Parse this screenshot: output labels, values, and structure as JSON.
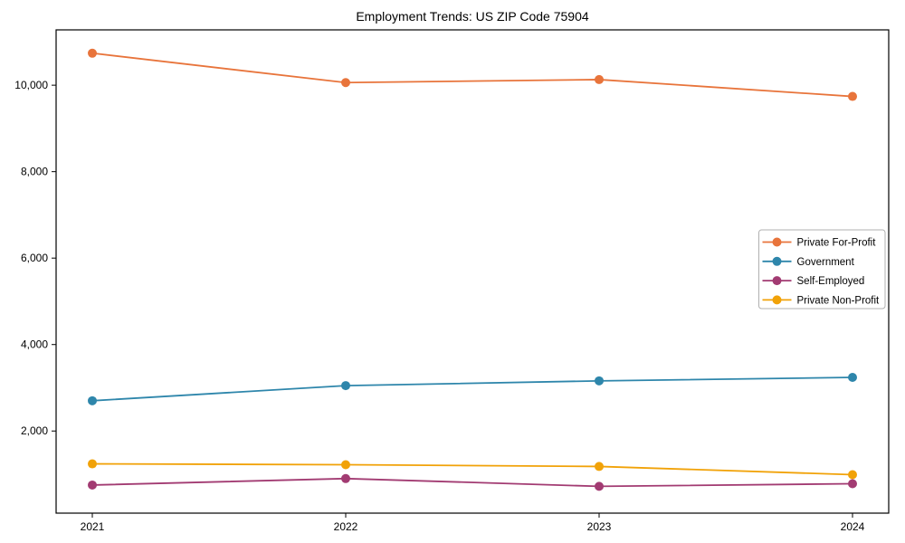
{
  "chart_data": {
    "type": "line",
    "title": "Employment Trends: US ZIP Code 75904",
    "xlabel": "",
    "ylabel": "",
    "x_tick_labels": [
      "2021",
      "2022",
      "2023",
      "2024"
    ],
    "y_ticks": [
      2000,
      4000,
      6000,
      8000,
      10000
    ],
    "y_tick_labels": [
      "2,000",
      "4,000",
      "6,000",
      "8,000",
      "10,000"
    ],
    "ylim": [
      100,
      11280
    ],
    "grid": false,
    "legend_position": "center right",
    "frame": "full-box",
    "series": [
      {
        "name": "Private For-Profit",
        "color": "#E8743B",
        "values": [
          10740,
          10060,
          10130,
          9740
        ]
      },
      {
        "name": "Government",
        "color": "#2E86AB",
        "values": [
          2700,
          3050,
          3160,
          3240
        ]
      },
      {
        "name": "Self-Employed",
        "color": "#A23B72",
        "values": [
          750,
          900,
          720,
          780
        ]
      },
      {
        "name": "Private Non-Profit",
        "color": "#F1A208",
        "values": [
          1240,
          1220,
          1180,
          990
        ]
      }
    ]
  }
}
